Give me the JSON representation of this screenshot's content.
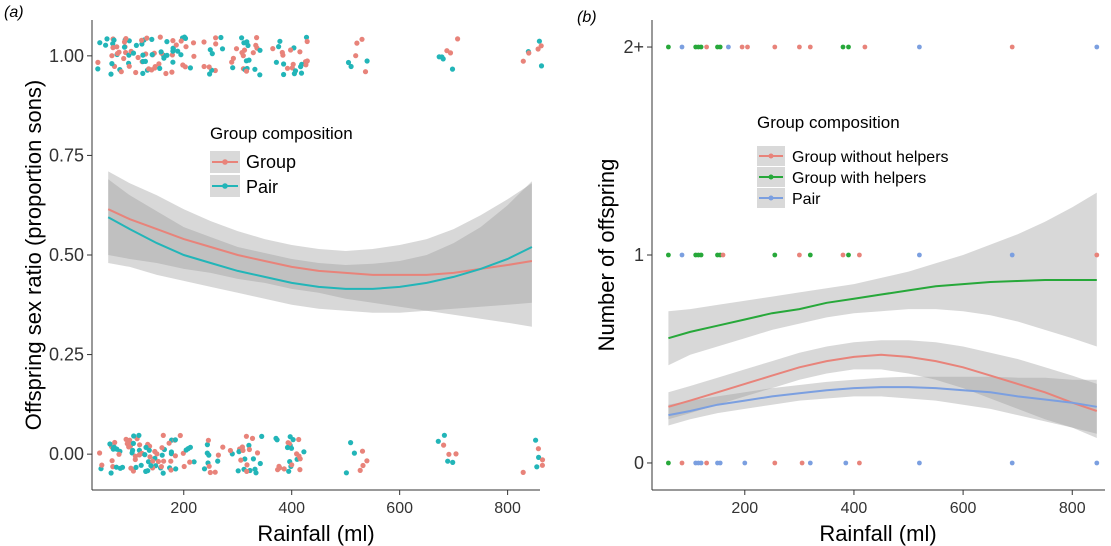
{
  "chart_data": [
    {
      "panel_label": "(a)",
      "type": "scatter",
      "xlabel": "Rainfall (ml)",
      "ylabel": "Offspring sex ratio (proportion sons)",
      "xlim": [
        30,
        860
      ],
      "ylim": [
        -0.09,
        1.09
      ],
      "x_ticks": [
        200,
        400,
        600,
        800
      ],
      "x_tick_labels": [
        "200",
        "400",
        "600",
        "800"
      ],
      "y_ticks": [
        0,
        0.25,
        0.5,
        0.75,
        1.0
      ],
      "y_tick_labels": [
        "0.00",
        "0.25",
        "0.50",
        "0.75",
        "1.00"
      ],
      "grid": false,
      "legend": {
        "title": "Group composition",
        "position": "center-top",
        "entries": [
          {
            "label": "Group",
            "color": "#e8837a"
          },
          {
            "label": "Pair",
            "color": "#22b5b8"
          }
        ]
      },
      "rainfall_sites": [
        60,
        85,
        110,
        130,
        150,
        170,
        200,
        255,
        305,
        325,
        385,
        410,
        520,
        690,
        845
      ],
      "observed_values": [
        0,
        1
      ],
      "series": [
        {
          "name": "Group",
          "color": "#e8837a",
          "x": [
            60,
            100,
            150,
            200,
            250,
            300,
            350,
            400,
            450,
            500,
            550,
            600,
            650,
            700,
            750,
            800,
            845
          ],
          "fit": [
            0.615,
            0.59,
            0.565,
            0.54,
            0.52,
            0.5,
            0.485,
            0.47,
            0.46,
            0.455,
            0.45,
            0.45,
            0.45,
            0.455,
            0.465,
            0.475,
            0.485
          ],
          "ci_lower": [
            0.5,
            0.49,
            0.48,
            0.465,
            0.455,
            0.44,
            0.43,
            0.415,
            0.405,
            0.39,
            0.38,
            0.37,
            0.36,
            0.35,
            0.34,
            0.33,
            0.32
          ],
          "ci_upper": [
            0.71,
            0.68,
            0.65,
            0.615,
            0.585,
            0.56,
            0.54,
            0.525,
            0.515,
            0.51,
            0.515,
            0.525,
            0.54,
            0.565,
            0.6,
            0.64,
            0.68
          ]
        },
        {
          "name": "Pair",
          "color": "#22b5b8",
          "x": [
            60,
            100,
            150,
            200,
            250,
            300,
            350,
            400,
            450,
            500,
            550,
            600,
            650,
            700,
            750,
            800,
            845
          ],
          "fit": [
            0.595,
            0.565,
            0.53,
            0.5,
            0.48,
            0.46,
            0.445,
            0.43,
            0.42,
            0.415,
            0.415,
            0.42,
            0.43,
            0.445,
            0.465,
            0.49,
            0.52
          ],
          "ci_lower": [
            0.48,
            0.47,
            0.45,
            0.435,
            0.42,
            0.405,
            0.39,
            0.375,
            0.365,
            0.36,
            0.355,
            0.355,
            0.36,
            0.365,
            0.37,
            0.375,
            0.38
          ],
          "ci_upper": [
            0.69,
            0.65,
            0.61,
            0.57,
            0.545,
            0.52,
            0.505,
            0.49,
            0.48,
            0.475,
            0.478,
            0.485,
            0.5,
            0.53,
            0.57,
            0.625,
            0.685
          ]
        }
      ]
    },
    {
      "panel_label": "(b)",
      "type": "scatter",
      "xlabel": "Rainfall (ml)",
      "ylabel": "Number of offspring",
      "xlim": [
        30,
        860
      ],
      "ylim": [
        -0.13,
        2.13
      ],
      "x_ticks": [
        200,
        400,
        600,
        800
      ],
      "x_tick_labels": [
        "200",
        "400",
        "600",
        "800"
      ],
      "y_ticks": [
        0,
        1,
        2
      ],
      "y_tick_labels": [
        "0",
        "1",
        "2+"
      ],
      "grid": false,
      "legend": {
        "title": "Group composition",
        "position": "center-top",
        "entries": [
          {
            "label": "Group without helpers",
            "color": "#e8837a"
          },
          {
            "label": "Group with helpers",
            "color": "#27a83a"
          },
          {
            "label": "Pair",
            "color": "#7b9fe0"
          }
        ]
      },
      "points": [
        {
          "x": 60,
          "y": 2,
          "group": "Group with helpers"
        },
        {
          "x": 85,
          "y": 2,
          "group": "Pair"
        },
        {
          "x": 110,
          "y": 2,
          "group": "Group with helpers"
        },
        {
          "x": 115,
          "y": 2,
          "group": "Group with helpers"
        },
        {
          "x": 120,
          "y": 2,
          "group": "Group with helpers"
        },
        {
          "x": 130,
          "y": 2,
          "group": "Group without helpers"
        },
        {
          "x": 150,
          "y": 2,
          "group": "Group with helpers"
        },
        {
          "x": 155,
          "y": 2,
          "group": "Group with helpers"
        },
        {
          "x": 170,
          "y": 2,
          "group": "Pair"
        },
        {
          "x": 195,
          "y": 2,
          "group": "Group without helpers"
        },
        {
          "x": 205,
          "y": 2,
          "group": "Group without helpers"
        },
        {
          "x": 255,
          "y": 2,
          "group": "Group without helpers"
        },
        {
          "x": 300,
          "y": 2,
          "group": "Group without helpers"
        },
        {
          "x": 320,
          "y": 2,
          "group": "Group without helpers"
        },
        {
          "x": 380,
          "y": 2,
          "group": "Group with helpers"
        },
        {
          "x": 390,
          "y": 2,
          "group": "Group with helpers"
        },
        {
          "x": 420,
          "y": 2,
          "group": "Group without helpers"
        },
        {
          "x": 520,
          "y": 2,
          "group": "Pair"
        },
        {
          "x": 690,
          "y": 2,
          "group": "Group without helpers"
        },
        {
          "x": 845,
          "y": 2,
          "group": "Pair"
        },
        {
          "x": 60,
          "y": 1,
          "group": "Group with helpers"
        },
        {
          "x": 85,
          "y": 1,
          "group": "Pair"
        },
        {
          "x": 110,
          "y": 1,
          "group": "Group with helpers"
        },
        {
          "x": 115,
          "y": 1,
          "group": "Group with helpers"
        },
        {
          "x": 120,
          "y": 1,
          "group": "Group with helpers"
        },
        {
          "x": 150,
          "y": 1,
          "group": "Group with helpers"
        },
        {
          "x": 155,
          "y": 1,
          "group": "Group with helpers"
        },
        {
          "x": 160,
          "y": 1,
          "group": "Group without helpers"
        },
        {
          "x": 255,
          "y": 1,
          "group": "Group with helpers"
        },
        {
          "x": 300,
          "y": 1,
          "group": "Group without helpers"
        },
        {
          "x": 320,
          "y": 1,
          "group": "Group with helpers"
        },
        {
          "x": 380,
          "y": 1,
          "group": "Group without helpers"
        },
        {
          "x": 390,
          "y": 1,
          "group": "Group with helpers"
        },
        {
          "x": 410,
          "y": 1,
          "group": "Group without helpers"
        },
        {
          "x": 520,
          "y": 1,
          "group": "Pair"
        },
        {
          "x": 690,
          "y": 1,
          "group": "Pair"
        },
        {
          "x": 845,
          "y": 1,
          "group": "Group without helpers"
        },
        {
          "x": 60,
          "y": 0,
          "group": "Group with helpers"
        },
        {
          "x": 85,
          "y": 0,
          "group": "Group without helpers"
        },
        {
          "x": 110,
          "y": 0,
          "group": "Pair"
        },
        {
          "x": 115,
          "y": 0,
          "group": "Pair"
        },
        {
          "x": 120,
          "y": 0,
          "group": "Pair"
        },
        {
          "x": 130,
          "y": 0,
          "group": "Group without helpers"
        },
        {
          "x": 150,
          "y": 0,
          "group": "Pair"
        },
        {
          "x": 155,
          "y": 0,
          "group": "Pair"
        },
        {
          "x": 200,
          "y": 0,
          "group": "Pair"
        },
        {
          "x": 255,
          "y": 0,
          "group": "Group without helpers"
        },
        {
          "x": 305,
          "y": 0,
          "group": "Group without helpers"
        },
        {
          "x": 320,
          "y": 0,
          "group": "Pair"
        },
        {
          "x": 385,
          "y": 0,
          "group": "Pair"
        },
        {
          "x": 410,
          "y": 0,
          "group": "Group without helpers"
        },
        {
          "x": 520,
          "y": 0,
          "group": "Pair"
        },
        {
          "x": 690,
          "y": 0,
          "group": "Pair"
        },
        {
          "x": 845,
          "y": 0,
          "group": "Pair"
        }
      ],
      "series": [
        {
          "name": "Group without helpers",
          "color": "#e8837a",
          "x": [
            60,
            100,
            150,
            200,
            250,
            300,
            350,
            400,
            450,
            500,
            550,
            600,
            650,
            700,
            750,
            800,
            845
          ],
          "fit": [
            0.27,
            0.3,
            0.34,
            0.38,
            0.42,
            0.46,
            0.49,
            0.51,
            0.52,
            0.51,
            0.49,
            0.46,
            0.42,
            0.38,
            0.34,
            0.29,
            0.25
          ],
          "ci_lower": [
            0.21,
            0.24,
            0.28,
            0.32,
            0.36,
            0.4,
            0.43,
            0.45,
            0.45,
            0.43,
            0.4,
            0.36,
            0.31,
            0.26,
            0.21,
            0.17,
            0.12
          ],
          "ci_upper": [
            0.34,
            0.37,
            0.41,
            0.45,
            0.49,
            0.53,
            0.56,
            0.58,
            0.59,
            0.59,
            0.58,
            0.56,
            0.53,
            0.5,
            0.46,
            0.42,
            0.38
          ]
        },
        {
          "name": "Group with helpers",
          "color": "#27a83a",
          "x": [
            60,
            100,
            150,
            200,
            250,
            300,
            350,
            400,
            450,
            500,
            550,
            600,
            650,
            700,
            750,
            800,
            845
          ],
          "fit": [
            0.6,
            0.63,
            0.66,
            0.69,
            0.72,
            0.74,
            0.77,
            0.79,
            0.81,
            0.83,
            0.85,
            0.86,
            0.87,
            0.875,
            0.88,
            0.88,
            0.88
          ],
          "ci_lower": [
            0.47,
            0.52,
            0.56,
            0.6,
            0.64,
            0.67,
            0.7,
            0.72,
            0.73,
            0.74,
            0.74,
            0.73,
            0.71,
            0.68,
            0.64,
            0.6,
            0.56
          ],
          "ci_upper": [
            0.73,
            0.74,
            0.76,
            0.78,
            0.8,
            0.82,
            0.84,
            0.86,
            0.89,
            0.92,
            0.96,
            1.0,
            1.05,
            1.1,
            1.16,
            1.23,
            1.3
          ]
        },
        {
          "name": "Pair",
          "color": "#7b9fe0",
          "x": [
            60,
            100,
            150,
            200,
            250,
            300,
            350,
            400,
            450,
            500,
            550,
            600,
            650,
            700,
            750,
            800,
            845
          ],
          "fit": [
            0.23,
            0.25,
            0.28,
            0.3,
            0.32,
            0.335,
            0.35,
            0.36,
            0.365,
            0.365,
            0.36,
            0.35,
            0.34,
            0.32,
            0.305,
            0.29,
            0.27
          ],
          "ci_lower": [
            0.18,
            0.21,
            0.24,
            0.26,
            0.28,
            0.3,
            0.31,
            0.32,
            0.32,
            0.31,
            0.3,
            0.28,
            0.26,
            0.23,
            0.2,
            0.17,
            0.14
          ],
          "ci_upper": [
            0.28,
            0.3,
            0.32,
            0.34,
            0.36,
            0.375,
            0.39,
            0.4,
            0.41,
            0.415,
            0.415,
            0.415,
            0.415,
            0.41,
            0.41,
            0.4,
            0.4
          ]
        }
      ]
    }
  ]
}
